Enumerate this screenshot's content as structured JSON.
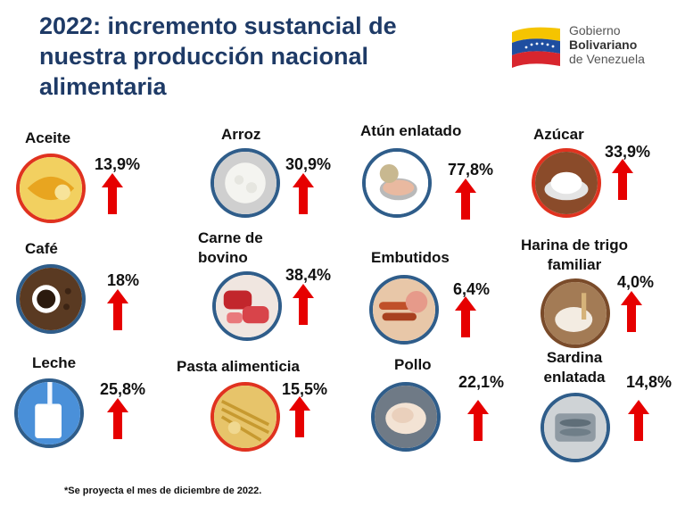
{
  "title": "2022: incremento sustancial de nuestra producción nacional alimentaria",
  "logo": {
    "line1": "Gobierno",
    "line2": "Bolivariano",
    "line3": "de Venezuela"
  },
  "items": [
    {
      "name": "Aceite",
      "pct": "13,9%"
    },
    {
      "name": "Arroz",
      "pct": "30,9%"
    },
    {
      "name": "Atún enlatado",
      "pct": "77,8%"
    },
    {
      "name": "Azúcar",
      "pct": "33,9%"
    },
    {
      "name": "Café",
      "pct": "18%"
    },
    {
      "name": "Carne de bovino",
      "pct": "38,4%"
    },
    {
      "name": "Embutidos",
      "pct": "6,4%"
    },
    {
      "name": "Harina de trigo familiar",
      "pct": "4,0%"
    },
    {
      "name": "Leche",
      "pct": "25,8%"
    },
    {
      "name": "Pasta alimenticia",
      "pct": "15,5%"
    },
    {
      "name": "Pollo",
      "pct": "22,1%"
    },
    {
      "name": "Sardina enlatada",
      "pct": "14,8%"
    }
  ],
  "footnote": "*Se proyecta el mes de diciembre de 2022.",
  "colors": {
    "title": "#1e3a66",
    "arrow": "#e60000",
    "ring": "#2f5d8a",
    "ring_red": "#e0321f"
  }
}
